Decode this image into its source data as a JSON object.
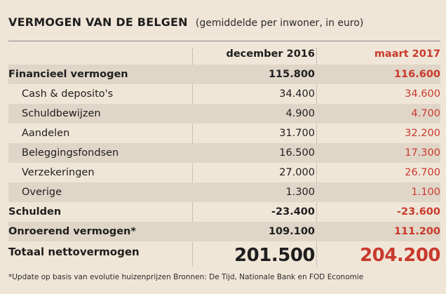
{
  "title": {
    "main": "VERMOGEN VAN DE BELGEN",
    "sub": "(gemiddelde per inwoner, in euro)"
  },
  "columns": {
    "dec": "december 2016",
    "mar": "maart 2017"
  },
  "rows": [
    {
      "label": "Financieel vermogen",
      "dec": "115.800",
      "mar": "116.600"
    },
    {
      "label": "Cash & deposito's",
      "dec": "34.400",
      "mar": "34.600"
    },
    {
      "label": "Schuldbewijzen",
      "dec": "4.900",
      "mar": "4.700"
    },
    {
      "label": "Aandelen",
      "dec": "31.700",
      "mar": "32.200"
    },
    {
      "label": "Beleggingsfondsen",
      "dec": "16.500",
      "mar": "17.300"
    },
    {
      "label": "Verzekeringen",
      "dec": "27.000",
      "mar": "26.700"
    },
    {
      "label": "Overige",
      "dec": "1.300",
      "mar": "1.100"
    },
    {
      "label": "Schulden",
      "dec": "-23.400",
      "mar": "-23.600"
    },
    {
      "label": "Onroerend vermogen*",
      "dec": "109.100",
      "mar": "111.200"
    },
    {
      "label": "Totaal nettovermogen",
      "dec": "201.500",
      "mar": "204.200"
    }
  ],
  "footnote": "*Update op basis van evolutie huizenprijzen   Bronnen: De Tijd, Nationale Bank en FOD Economie",
  "colors": {
    "background": "#f0e6d8",
    "band": "#e0d6c8",
    "accent_red": "#c8392c",
    "text": "#1e1e1e"
  }
}
